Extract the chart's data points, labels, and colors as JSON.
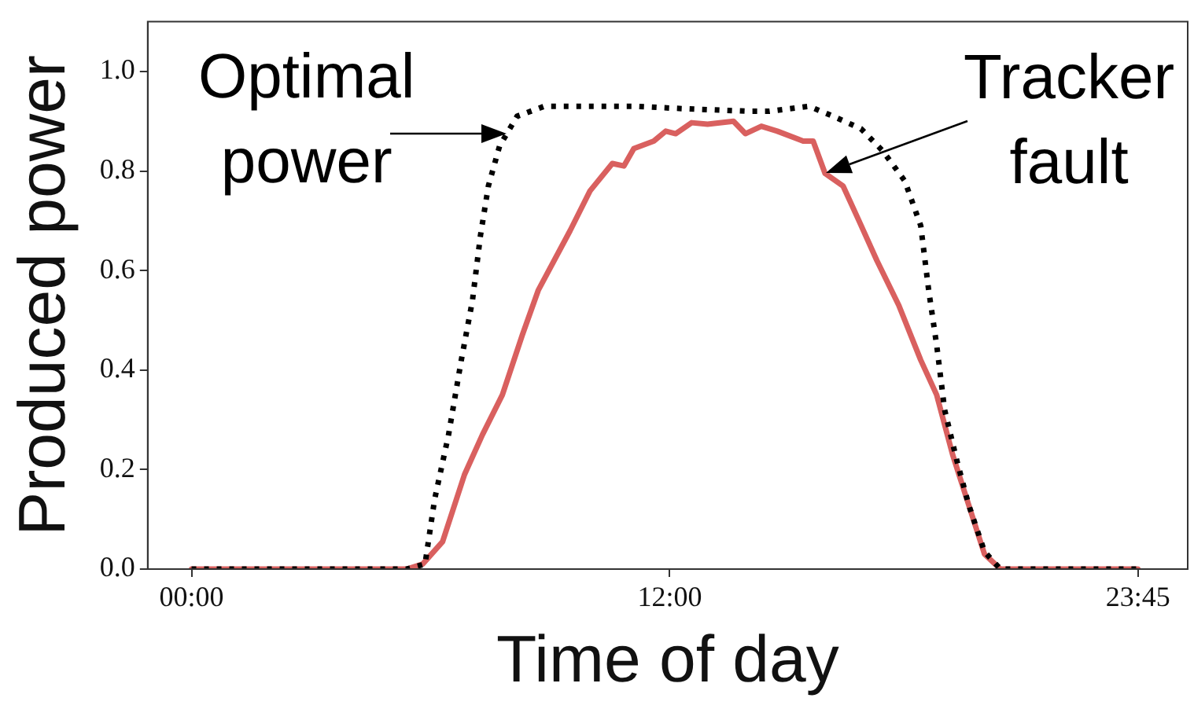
{
  "chart_data": {
    "type": "line",
    "xlabel": "Time of day",
    "ylabel": "Produced power",
    "xlim": [
      -1.1,
      25
    ],
    "ylim": [
      0,
      1.1
    ],
    "xticks": [
      {
        "value": 0,
        "label": "00:00"
      },
      {
        "value": 12,
        "label": "12:00"
      },
      {
        "value": 23.75,
        "label": "23:45"
      }
    ],
    "yticks": [
      {
        "value": 0,
        "label": "0.0"
      },
      0.2,
      0.4,
      0.6,
      0.8,
      {
        "value": 1,
        "label": "1.0"
      }
    ],
    "grid": false,
    "legend": false,
    "marker": "none",
    "series": [
      {
        "color": "#000000",
        "line_style": "dotted",
        "x": [
          0,
          5.4,
          5.86,
          6.1,
          6.45,
          6.77,
          7.05,
          7.25,
          7.45,
          7.73,
          8.17,
          8.85,
          10.0,
          11.1,
          12.4,
          14.0,
          14.5,
          15.5,
          16.1,
          16.8,
          17.35,
          17.9,
          18.3,
          18.5,
          18.7,
          18.9,
          19.2,
          19.5,
          19.9,
          20.3,
          23.75
        ],
        "values": [
          0,
          0,
          0.01,
          0.14,
          0.27,
          0.42,
          0.54,
          0.67,
          0.77,
          0.85,
          0.91,
          0.93,
          0.93,
          0.93,
          0.925,
          0.92,
          0.92,
          0.93,
          0.91,
          0.885,
          0.84,
          0.78,
          0.69,
          0.56,
          0.45,
          0.32,
          0.22,
          0.13,
          0.035,
          0,
          0
        ]
      },
      {
        "color": "#d9605f",
        "line_style": "solid",
        "x": [
          0,
          5.4,
          5.8,
          6.3,
          6.85,
          7.3,
          7.8,
          8.3,
          8.7,
          9.5,
          10.0,
          10.56,
          10.85,
          11.1,
          11.6,
          11.9,
          12.15,
          12.55,
          12.95,
          13.6,
          13.9,
          14.3,
          14.7,
          15.35,
          15.6,
          15.9,
          16.35,
          16.75,
          17.2,
          17.75,
          18.3,
          18.7,
          19.1,
          19.5,
          19.9,
          20.3,
          23.75
        ],
        "values": [
          0,
          0,
          0.01,
          0.055,
          0.19,
          0.27,
          0.35,
          0.47,
          0.56,
          0.68,
          0.76,
          0.815,
          0.81,
          0.845,
          0.86,
          0.88,
          0.875,
          0.897,
          0.894,
          0.9,
          0.875,
          0.89,
          0.88,
          0.86,
          0.86,
          0.795,
          0.77,
          0.7,
          0.62,
          0.53,
          0.42,
          0.35,
          0.23,
          0.13,
          0.03,
          0,
          0
        ]
      }
    ],
    "annotations": [
      {
        "text": "Optimal power",
        "x": 7.9,
        "y": 0.875
      },
      {
        "text": "Tracker fault",
        "x": 15.9,
        "y": 0.795
      }
    ]
  }
}
